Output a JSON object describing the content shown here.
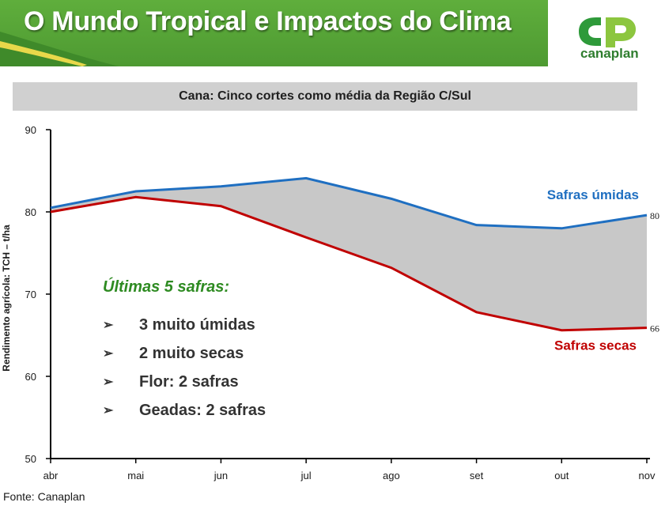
{
  "header": {
    "title": "O Mundo Tropical e Impactos do Clima",
    "logo_text": "canaplan"
  },
  "chart_data": {
    "type": "line",
    "title": "Cana: Cinco cortes como média da Região C/Sul",
    "ylabel": "Rendimento agrícola: TCH – t/ha",
    "xlabel": "",
    "categories": [
      "abr",
      "mai",
      "jun",
      "jul",
      "ago",
      "set",
      "out",
      "nov"
    ],
    "ylim": [
      50,
      90
    ],
    "yticks": [
      50,
      60,
      70,
      80,
      90
    ],
    "series": [
      {
        "name": "Safras úmidas",
        "color": "#1f6fc1",
        "values": [
          80.5,
          82.5,
          83.1,
          84.1,
          81.6,
          78.4,
          78.0,
          79.6
        ],
        "end_label": "80"
      },
      {
        "name": "Safras secas",
        "color": "#c00000",
        "values": [
          80.0,
          81.8,
          80.7,
          76.9,
          73.2,
          67.8,
          65.6,
          65.9
        ],
        "end_label": "66"
      }
    ],
    "fill_between_color": "#c8c8c8",
    "grid": false,
    "legend": "inline labels right"
  },
  "notes": {
    "heading": "Últimas 5 safras:",
    "items": [
      "3 muito úmidas",
      "2 muito secas",
      "Flor: 2 safras",
      "Geadas: 2 safras"
    ]
  },
  "footer": {
    "source": "Fonte: Canaplan"
  },
  "colors": {
    "banner_green": "#5fae3c",
    "accent_yellow": "#e8d84a",
    "logo_green": "#2e7d2e"
  }
}
